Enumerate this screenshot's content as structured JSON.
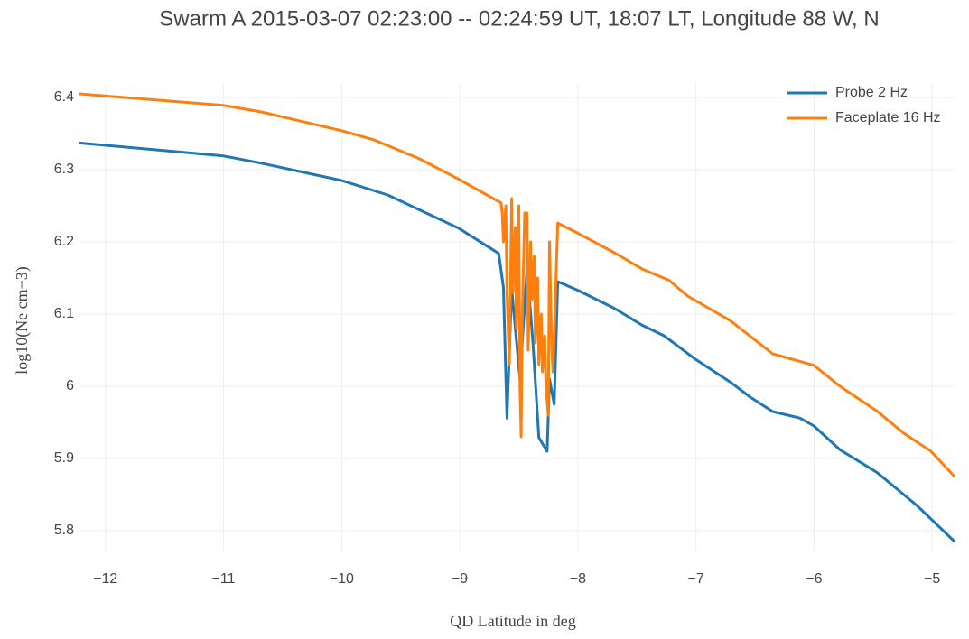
{
  "chart_data": {
    "type": "line",
    "title": "Swarm A 2015-03-07 02:23:00 -- 02:24:59 UT, 18:07 LT, Longitude 88 W, N",
    "xlabel": "QD Latitude in deg",
    "ylabel": "log10(Ne cm−3)",
    "xlim": [
      -12.22,
      -4.81
    ],
    "ylim": [
      5.77,
      6.42
    ],
    "xticks": [
      {
        "value": -12,
        "label": "−12"
      },
      {
        "value": -11,
        "label": "−11"
      },
      {
        "value": -10,
        "label": "−10"
      },
      {
        "value": -9,
        "label": "−9"
      },
      {
        "value": -8,
        "label": "−8"
      },
      {
        "value": -7,
        "label": "−7"
      },
      {
        "value": -6,
        "label": "−6"
      },
      {
        "value": -5,
        "label": "−5"
      }
    ],
    "yticks": [
      5.8,
      5.9,
      6,
      6.1,
      6.2,
      6.3,
      6.4
    ],
    "grid": true,
    "legend": "top-right",
    "series": [
      {
        "name": "Probe 2 Hz",
        "color": "#1f77b4",
        "x": [
          -12.22,
          -11,
          -10.68,
          -10,
          -9.61,
          -9.01,
          -8.67,
          -8.63,
          -8.6,
          -8.56,
          -8.49,
          -8.43,
          -8.38,
          -8.33,
          -8.26,
          -8.24,
          -8.2,
          -8.17,
          -8.0,
          -7.69,
          -7.46,
          -7.27,
          -7.0,
          -6.71,
          -6.54,
          -6.35,
          -6.12,
          -6.0,
          -5.78,
          -5.47,
          -5.24,
          -5.13,
          -4.81
        ],
        "values": [
          6.337,
          6.319,
          6.309,
          6.285,
          6.265,
          6.219,
          6.184,
          6.137,
          5.956,
          6.135,
          6.01,
          6.164,
          6.06,
          5.929,
          5.91,
          6.01,
          5.975,
          6.145,
          6.133,
          6.108,
          6.085,
          6.07,
          6.037,
          6.006,
          5.985,
          5.965,
          5.956,
          5.945,
          5.912,
          5.881,
          5.85,
          5.835,
          5.785
        ]
      },
      {
        "name": "Faceplate 16 Hz",
        "color": "#ff7f0e",
        "x": [
          -12.22,
          -11,
          -10.68,
          -10,
          -9.72,
          -9.34,
          -9.01,
          -8.65,
          -8.64,
          -8.63,
          -8.61,
          -8.6,
          -8.58,
          -8.56,
          -8.55,
          -8.53,
          -8.52,
          -8.5,
          -8.49,
          -8.48,
          -8.47,
          -8.45,
          -8.43,
          -8.42,
          -8.4,
          -8.39,
          -8.37,
          -8.36,
          -8.34,
          -8.33,
          -8.31,
          -8.3,
          -8.28,
          -8.27,
          -8.25,
          -8.24,
          -8.22,
          -8.21,
          -8.19,
          -8.17,
          -8.0,
          -7.69,
          -7.45,
          -7.23,
          -7.07,
          -6.71,
          -6.35,
          -6.0,
          -5.78,
          -5.47,
          -5.24,
          -5.01,
          -4.81
        ],
        "values": [
          6.405,
          6.389,
          6.38,
          6.354,
          6.341,
          6.315,
          6.287,
          6.254,
          6.24,
          6.2,
          6.25,
          6.13,
          6.03,
          6.26,
          6.13,
          6.22,
          6.08,
          6.25,
          6.0,
          5.93,
          6.1,
          6.24,
          6.24,
          6.05,
          6.2,
          6.12,
          6.18,
          6.06,
          6.15,
          6.03,
          6.1,
          6.02,
          6.07,
          6.0,
          5.96,
          6.2,
          6.05,
          6.02,
          6.12,
          6.226,
          6.212,
          6.185,
          6.162,
          6.147,
          6.125,
          6.091,
          6.045,
          6.029,
          6.0,
          5.966,
          5.935,
          5.91,
          5.875
        ]
      }
    ]
  }
}
